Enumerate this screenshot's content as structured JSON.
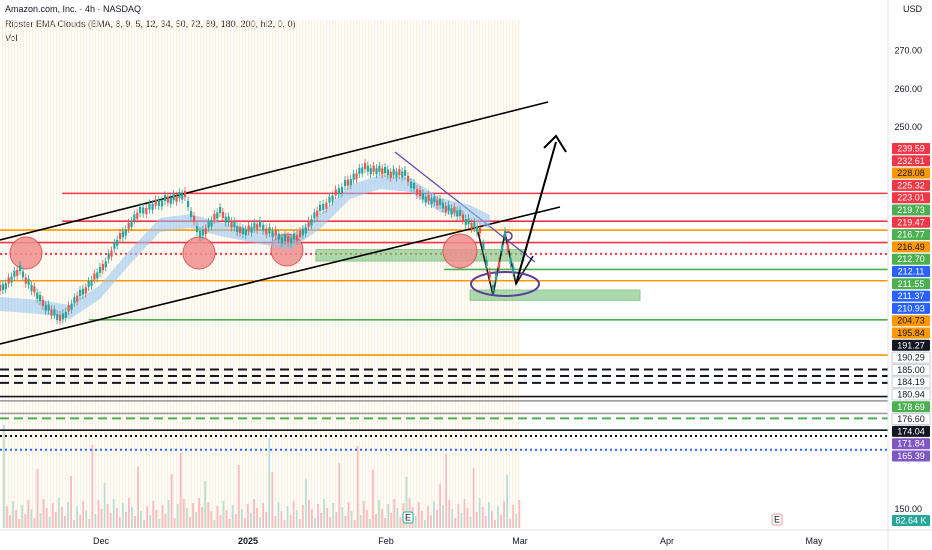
{
  "header": {
    "title": "Amazon.com, Inc. · 4h · NASDAQ",
    "indicator": "Ripster EMA Clouds (EMA, 8, 9, 5, 12, 34, 50, 72, 89, 180, 200, hl2, 0, 0)",
    "volume": "Vol"
  },
  "currency": "USD",
  "chart_data": {
    "type": "candlestick",
    "y_axis": {
      "min": 145,
      "max": 278,
      "ticks": [
        270.0,
        260.0,
        250.0,
        150.0
      ]
    },
    "x_axis": {
      "labels": [
        "Dec",
        "2025",
        "Feb",
        "Mar",
        "Apr",
        "May"
      ]
    },
    "price_tags": [
      {
        "value": "239.59",
        "color": "#f23645",
        "text": "#ffffff"
      },
      {
        "value": "232.61",
        "color": "#f23645",
        "text": "#ffffff"
      },
      {
        "value": "228.08",
        "color": "#ff9800",
        "text": "#131722"
      },
      {
        "value": "225.32",
        "color": "#f23645",
        "text": "#ffffff"
      },
      {
        "value": "223.01",
        "color": "#f23645",
        "text": "#ffffff"
      },
      {
        "value": "219.73",
        "color": "#4caf50",
        "text": "#ffffff"
      },
      {
        "value": "219.47",
        "color": "#f23645",
        "text": "#ffffff"
      },
      {
        "value": "216.77",
        "color": "#4caf50",
        "text": "#ffffff"
      },
      {
        "value": "216.49",
        "color": "#ff9800",
        "text": "#131722"
      },
      {
        "value": "212.70",
        "color": "#4caf50",
        "text": "#ffffff"
      },
      {
        "value": "212.11",
        "color": "#2962ff",
        "text": "#ffffff"
      },
      {
        "value": "211.55",
        "color": "#4caf50",
        "text": "#ffffff"
      },
      {
        "value": "211.37",
        "color": "#2962ff",
        "text": "#ffffff"
      },
      {
        "value": "210.93",
        "color": "#2962ff",
        "text": "#ffffff"
      },
      {
        "value": "204.73",
        "color": "#ff9800",
        "text": "#131722"
      },
      {
        "value": "195.84",
        "color": "#ff9800",
        "text": "#131722"
      },
      {
        "value": "191.27",
        "color": "#131722",
        "text": "#ffffff"
      },
      {
        "value": "190.29",
        "color": "#ffffff",
        "text": "#131722"
      },
      {
        "value": "185.00",
        "color": "#ffffff",
        "text": "#131722"
      },
      {
        "value": "184.19",
        "color": "#ffffff",
        "text": "#131722"
      },
      {
        "value": "180.94",
        "color": "#ffffff",
        "text": "#131722"
      },
      {
        "value": "178.69",
        "color": "#4caf50",
        "text": "#ffffff"
      },
      {
        "value": "176.60",
        "color": "#ffffff",
        "text": "#131722"
      },
      {
        "value": "174.04",
        "color": "#131722",
        "text": "#ffffff"
      },
      {
        "value": "171.84",
        "color": "#7e57c2",
        "text": "#ffffff"
      },
      {
        "value": "165.39",
        "color": "#7e57c2",
        "text": "#ffffff"
      },
      {
        "value": "82.64 K",
        "color": "#26a69a",
        "text": "#ffffff"
      }
    ],
    "levels": [
      {
        "y": 232.61,
        "color": "#f23645",
        "style": "solid",
        "x_start": 0.07
      },
      {
        "y": 225.32,
        "color": "#f23645",
        "style": "solid",
        "x_start": 0.07
      },
      {
        "y": 223.01,
        "color": "#ff9800",
        "style": "solid",
        "x_start": 0
      },
      {
        "y": 219.73,
        "color": "#f23645",
        "style": "solid",
        "x_start": 0
      },
      {
        "y": 216.77,
        "color": "#f23645",
        "style": "dotted",
        "x_start": 0
      },
      {
        "y": 212.7,
        "color": "#4caf50",
        "style": "solid",
        "x_start": 0.5
      },
      {
        "y": 209.73,
        "color": "#ff9800",
        "style": "solid",
        "x_start": 0
      },
      {
        "y": 199.5,
        "color": "#4caf50",
        "style": "solid",
        "x_start": 0.1
      },
      {
        "y": 190.29,
        "color": "#ff9800",
        "style": "solid",
        "x_start": 0
      },
      {
        "y": 186.5,
        "color": "#131722",
        "style": "dashed",
        "x_start": 0
      },
      {
        "y": 184.8,
        "color": "#131722",
        "style": "dashed",
        "x_start": 0
      },
      {
        "y": 183.0,
        "color": "#131722",
        "style": "dashed",
        "x_start": 0
      },
      {
        "y": 179.4,
        "color": "#131722",
        "style": "solid",
        "x_start": 0
      },
      {
        "y": 178.3,
        "color": "#9e9e9e",
        "style": "solid",
        "x_start": 0
      },
      {
        "y": 175.0,
        "color": "#9e9e9e",
        "style": "solid",
        "x_start": 0
      },
      {
        "y": 173.7,
        "color": "#4caf50",
        "style": "dashed",
        "x_start": 0
      },
      {
        "y": 170.6,
        "color": "#131722",
        "style": "solid",
        "x_start": 0
      },
      {
        "y": 169.1,
        "color": "#131722",
        "style": "dotted",
        "x_start": 0
      },
      {
        "y": 165.5,
        "color": "#2962ff",
        "style": "dotted",
        "x_start": 0
      }
    ]
  }
}
